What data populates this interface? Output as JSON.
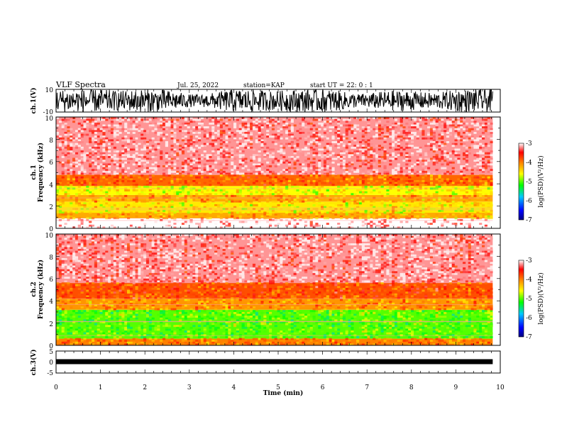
{
  "header": {
    "title": "VLF Spectra",
    "date": "Jul. 25, 2022",
    "station": "station=KAP",
    "start": "start UT =  22: 0 : 1"
  },
  "chart_data": [
    {
      "type": "line",
      "panel": "ch.1 waveform",
      "ylabel": "ch.1(V)",
      "ylim": [
        -10,
        10
      ],
      "yticks": [
        "10",
        "-10"
      ],
      "xlim": [
        0,
        10
      ],
      "description_values": {
        "amplitude_min": -10,
        "amplitude_max": 10
      }
    },
    {
      "type": "heatmap",
      "panel": "ch.1 spectrogram",
      "ylabel": "ch.1\nFrequency (kHz)",
      "ylabel_line1": "ch.1",
      "ylabel_line2": "Frequency (kHz)",
      "ylim": [
        0,
        10
      ],
      "yticks": [
        "0",
        "2",
        "4",
        "6",
        "8",
        "10"
      ],
      "xlim": [
        0,
        10
      ],
      "colorbar": {
        "label": "log(PSD)(V²/Hz)",
        "min": -7,
        "max": -3,
        "ticks": [
          "-3",
          "-4",
          "-5",
          "-6",
          "-7"
        ]
      },
      "bands_kHz_logPSD": [
        {
          "from": 0,
          "to": 0.9,
          "level": -3.0
        },
        {
          "from": 0.9,
          "to": 1.4,
          "level": -4.2
        },
        {
          "from": 1.4,
          "to": 2.4,
          "level": -4.5
        },
        {
          "from": 2.4,
          "to": 3.0,
          "level": -4.2
        },
        {
          "from": 3.0,
          "to": 3.8,
          "level": -4.6
        },
        {
          "from": 3.8,
          "to": 4.8,
          "level": -3.9
        },
        {
          "from": 4.8,
          "to": 10,
          "level": -3.2
        }
      ]
    },
    {
      "type": "heatmap",
      "panel": "ch.2 spectrogram",
      "ylabel_line1": "ch.2",
      "ylabel_line2": "Frequency (kHz)",
      "ylim": [
        0,
        10
      ],
      "yticks": [
        "0",
        "2",
        "4",
        "6",
        "8",
        "10"
      ],
      "xlim": [
        0,
        10
      ],
      "colorbar": {
        "label": "log(PSD)(V²/Hz)",
        "min": -7,
        "max": -3,
        "ticks": [
          "-3",
          "-4",
          "-5",
          "-6",
          "-7"
        ]
      },
      "bands_kHz_logPSD": [
        {
          "from": 0,
          "to": 0.6,
          "level": -4.0
        },
        {
          "from": 0.6,
          "to": 3.2,
          "level": -5.0
        },
        {
          "from": 3.2,
          "to": 4.2,
          "level": -4.1
        },
        {
          "from": 4.2,
          "to": 5.6,
          "level": -3.8
        },
        {
          "from": 5.6,
          "to": 10,
          "level": -3.2
        }
      ]
    },
    {
      "type": "line",
      "panel": "ch.3 waveform",
      "ylabel": "ch.3(V)",
      "ylim": [
        -5,
        5
      ],
      "yticks": [
        "5",
        "0",
        "-5"
      ],
      "xlim": [
        0,
        10
      ],
      "description_values": {
        "signal_level": 0
      }
    }
  ],
  "xaxis": {
    "label": "Time (min)",
    "ticks": [
      "0",
      "1",
      "2",
      "3",
      "4",
      "5",
      "6",
      "7",
      "8",
      "9",
      "10"
    ],
    "data_end": 9.83
  },
  "colors": {
    "scale": [
      "#000080",
      "#0000ff",
      "#00c8ff",
      "#00ff00",
      "#ffff00",
      "#ff8000",
      "#ff0000",
      "#ffffff"
    ]
  }
}
